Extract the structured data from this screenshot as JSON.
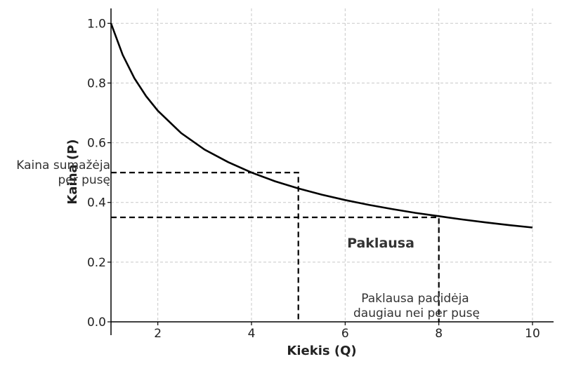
{
  "chart_data": {
    "type": "line",
    "xlabel": "Kiekis (Q)",
    "ylabel": "Kaina (P)",
    "xlim": [
      1,
      10.45
    ],
    "ylim": [
      0,
      1.05
    ],
    "grid": true,
    "x_ticks": [
      2,
      4,
      6,
      8,
      10
    ],
    "y_ticks": [
      0.0,
      0.2,
      0.4,
      0.6,
      0.8,
      1.0
    ],
    "x_tick_labels": [
      "2",
      "4",
      "6",
      "8",
      "10"
    ],
    "y_tick_labels": [
      "0.0",
      "0.2",
      "0.4",
      "0.6",
      "0.8",
      "1.0"
    ],
    "series": [
      {
        "curve": "P = 1/sqrt(Q)",
        "color": "#000000",
        "points": [
          [
            1.0,
            1.0
          ],
          [
            1.25,
            0.894
          ],
          [
            1.5,
            0.816
          ],
          [
            1.75,
            0.756
          ],
          [
            2.0,
            0.707
          ],
          [
            2.5,
            0.632
          ],
          [
            3.0,
            0.577
          ],
          [
            3.5,
            0.535
          ],
          [
            4.0,
            0.5
          ],
          [
            4.5,
            0.471
          ],
          [
            5.0,
            0.447
          ],
          [
            5.5,
            0.426
          ],
          [
            6.0,
            0.408
          ],
          [
            6.5,
            0.392
          ],
          [
            7.0,
            0.378
          ],
          [
            7.5,
            0.365
          ],
          [
            8.0,
            0.354
          ],
          [
            8.5,
            0.343
          ],
          [
            9.0,
            0.333
          ],
          [
            9.5,
            0.324
          ],
          [
            10.0,
            0.316
          ]
        ]
      }
    ],
    "reference_lines": [
      {
        "points": [
          [
            1,
            0.5
          ],
          [
            5,
            0.5
          ],
          [
            5,
            0
          ]
        ],
        "style": "dashed"
      },
      {
        "points": [
          [
            1,
            0.35
          ],
          [
            8,
            0.35
          ],
          [
            8,
            0
          ]
        ],
        "style": "dashed"
      }
    ],
    "annotations": {
      "price_note_line1": "Kaina sumažėja",
      "price_note_line2": "per pusę",
      "curve_label": "Paklausa",
      "demand_note_line1": "Paklausa padidėja",
      "demand_note_line2": "daugiau nei per pusę"
    }
  }
}
